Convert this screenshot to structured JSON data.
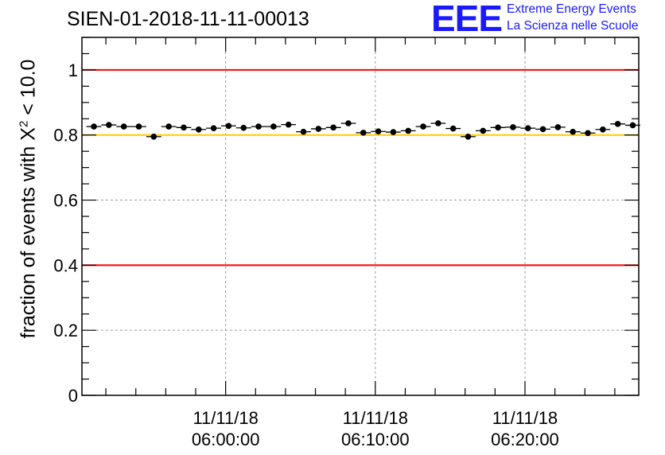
{
  "header": {
    "title": "SIEN-01-2018-11-11-00013",
    "logo_letters": "EEE",
    "logo_line1": "Extreme Energy Events",
    "logo_line2": "La Scienza nelle Scuole"
  },
  "chart_data": {
    "type": "scatter",
    "title": "SIEN-01-2018-11-11-00013",
    "ylabel_prefix": "fraction of events with Χ",
    "ylabel_sup": "2",
    "ylabel_suffix": " < 10.0",
    "ylim": [
      0,
      1.1
    ],
    "x_range_minutes": [
      -9.6,
      27.6
    ],
    "grid": true,
    "y_ticks": [
      "0",
      "0.2",
      "0.4",
      "0.6",
      "0.8",
      "1"
    ],
    "x_ticks": [
      {
        "minute": 0,
        "date": "11/11/18",
        "time": "06:00:00"
      },
      {
        "minute": 10,
        "date": "11/11/18",
        "time": "06:10:00"
      },
      {
        "minute": 20,
        "date": "11/11/18",
        "time": "06:20:00"
      }
    ],
    "reference_lines": [
      {
        "y": 1.0,
        "color": "#ff0000"
      },
      {
        "y": 0.8,
        "color": "#ffcc00"
      },
      {
        "y": 0.4,
        "color": "#ff0000"
      }
    ],
    "points": [
      {
        "minute": -8.8,
        "y": 0.826,
        "err": 0.005
      },
      {
        "minute": -7.8,
        "y": 0.831,
        "err": 0.005
      },
      {
        "minute": -6.8,
        "y": 0.826,
        "err": 0.005
      },
      {
        "minute": -5.8,
        "y": 0.826,
        "err": 0.005
      },
      {
        "minute": -4.8,
        "y": 0.795,
        "err": 0.006
      },
      {
        "minute": -3.8,
        "y": 0.826,
        "err": 0.005
      },
      {
        "minute": -2.8,
        "y": 0.823,
        "err": 0.005
      },
      {
        "minute": -1.8,
        "y": 0.817,
        "err": 0.005
      },
      {
        "minute": -0.8,
        "y": 0.821,
        "err": 0.005
      },
      {
        "minute": 0.2,
        "y": 0.828,
        "err": 0.005
      },
      {
        "minute": 1.2,
        "y": 0.822,
        "err": 0.005
      },
      {
        "minute": 2.2,
        "y": 0.826,
        "err": 0.005
      },
      {
        "minute": 3.2,
        "y": 0.826,
        "err": 0.005
      },
      {
        "minute": 4.2,
        "y": 0.832,
        "err": 0.005
      },
      {
        "minute": 5.2,
        "y": 0.81,
        "err": 0.005
      },
      {
        "minute": 6.2,
        "y": 0.819,
        "err": 0.005
      },
      {
        "minute": 7.2,
        "y": 0.823,
        "err": 0.005
      },
      {
        "minute": 8.2,
        "y": 0.836,
        "err": 0.005
      },
      {
        "minute": 9.2,
        "y": 0.807,
        "err": 0.005
      },
      {
        "minute": 10.2,
        "y": 0.811,
        "err": 0.005
      },
      {
        "minute": 11.2,
        "y": 0.809,
        "err": 0.005
      },
      {
        "minute": 12.2,
        "y": 0.813,
        "err": 0.005
      },
      {
        "minute": 13.2,
        "y": 0.826,
        "err": 0.005
      },
      {
        "minute": 14.2,
        "y": 0.836,
        "err": 0.005
      },
      {
        "minute": 15.2,
        "y": 0.82,
        "err": 0.005
      },
      {
        "minute": 16.2,
        "y": 0.795,
        "err": 0.006
      },
      {
        "minute": 17.2,
        "y": 0.813,
        "err": 0.005
      },
      {
        "minute": 18.2,
        "y": 0.823,
        "err": 0.005
      },
      {
        "minute": 19.2,
        "y": 0.824,
        "err": 0.005
      },
      {
        "minute": 20.2,
        "y": 0.821,
        "err": 0.005
      },
      {
        "minute": 21.2,
        "y": 0.818,
        "err": 0.005
      },
      {
        "minute": 22.2,
        "y": 0.824,
        "err": 0.005
      },
      {
        "minute": 23.2,
        "y": 0.81,
        "err": 0.005
      },
      {
        "minute": 24.2,
        "y": 0.806,
        "err": 0.005
      },
      {
        "minute": 25.2,
        "y": 0.817,
        "err": 0.005
      },
      {
        "minute": 26.2,
        "y": 0.834,
        "err": 0.005
      },
      {
        "minute": 27.2,
        "y": 0.83,
        "err": 0.005
      }
    ]
  }
}
